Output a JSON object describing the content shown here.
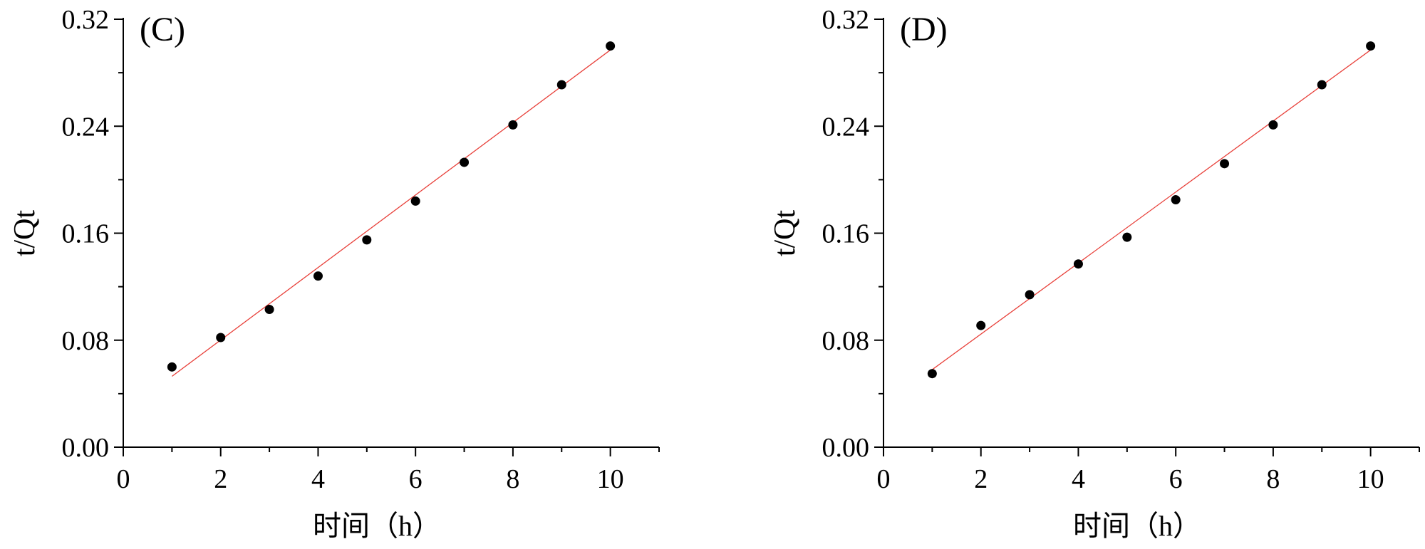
{
  "chart_data": [
    {
      "type": "scatter",
      "panel_label": "(C)",
      "xlabel": "时间（h）",
      "ylabel": "t/Qt",
      "xlim": [
        0,
        11
      ],
      "ylim": [
        0,
        0.32
      ],
      "xticks": [
        0,
        2,
        4,
        6,
        8,
        10
      ],
      "xtick_labels": [
        "0",
        "2",
        "4",
        "6",
        "8",
        "10"
      ],
      "yticks": [
        0,
        0.08,
        0.16,
        0.24,
        0.32
      ],
      "ytick_labels": [
        "0.00",
        "0.08",
        "0.16",
        "0.24",
        "0.32"
      ],
      "grid": false,
      "series": [
        {
          "x": [
            1,
            2,
            3,
            4,
            5,
            6,
            7,
            8,
            9,
            10
          ],
          "y": [
            0.06,
            0.082,
            0.103,
            0.128,
            0.155,
            0.184,
            0.213,
            0.241,
            0.271,
            0.3
          ],
          "marker_color": "#000000"
        }
      ],
      "fit_line": {
        "x": [
          1,
          10
        ],
        "y": [
          0.053,
          0.297
        ],
        "color": "#e8403a"
      }
    },
    {
      "type": "scatter",
      "panel_label": "(D)",
      "xlabel": "时间（h）",
      "ylabel": "t/Qt",
      "xlim": [
        0,
        11
      ],
      "ylim": [
        0,
        0.32
      ],
      "xticks": [
        0,
        2,
        4,
        6,
        8,
        10
      ],
      "xtick_labels": [
        "0",
        "2",
        "4",
        "6",
        "8",
        "10"
      ],
      "yticks": [
        0,
        0.08,
        0.16,
        0.24,
        0.32
      ],
      "ytick_labels": [
        "0.00",
        "0.08",
        "0.16",
        "0.24",
        "0.32"
      ],
      "grid": false,
      "series": [
        {
          "x": [
            1,
            2,
            3,
            4,
            5,
            6,
            7,
            8,
            9,
            10
          ],
          "y": [
            0.055,
            0.091,
            0.114,
            0.137,
            0.157,
            0.185,
            0.212,
            0.241,
            0.271,
            0.3
          ],
          "marker_color": "#000000"
        }
      ],
      "fit_line": {
        "x": [
          1,
          10
        ],
        "y": [
          0.058,
          0.297
        ],
        "color": "#e8403a"
      }
    }
  ]
}
